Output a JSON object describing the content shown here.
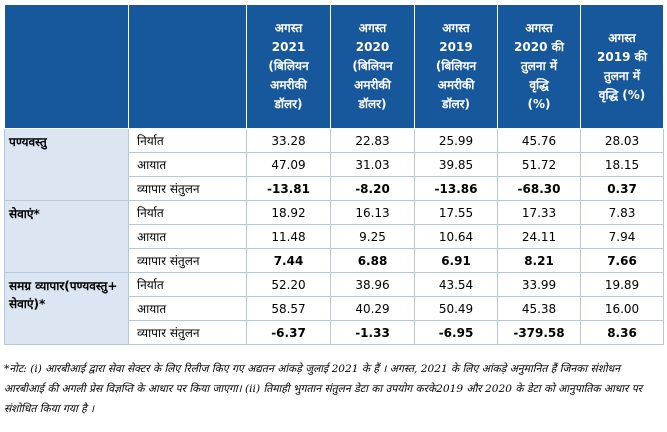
{
  "header": [
    {
      "lines": [
        "",
        ""
      ]
    },
    {
      "lines": [
        "",
        ""
      ]
    },
    {
      "lines": [
        "अगस्त",
        "2021",
        "(बिलियन",
        "अमरीकी",
        "डॉलर)"
      ]
    },
    {
      "lines": [
        "अगस्त",
        "2020",
        "(बिलियन",
        "अमरीकी",
        "डॉलर)"
      ]
    },
    {
      "lines": [
        "अगस्त",
        "2019",
        "(बिलियन",
        "अमरीकी",
        "डॉलर)"
      ]
    },
    {
      "lines": [
        "अगस्त",
        "2020 की",
        "तुलना में",
        "वृद्धि",
        "(%)"
      ]
    },
    {
      "lines": [
        "अगस्त",
        "2019 की",
        "तुलना में",
        "वृद्धि (%)",
        ""
      ]
    }
  ],
  "groups": [
    {
      "name": "पण्यवस्तु",
      "rows": [
        {
          "metric": "निर्यात",
          "values": [
            "33.28",
            "22.83",
            "25.99",
            "45.76",
            "28.03"
          ]
        },
        {
          "metric": "आयात",
          "values": [
            "47.09",
            "31.03",
            "39.85",
            "51.72",
            "18.15"
          ]
        },
        {
          "metric": "व्यापार संतुलन",
          "values": [
            "-13.81",
            "-8.20",
            "-13.86",
            "-68.30",
            "0.37"
          ]
        }
      ]
    },
    {
      "name": "सेवाएं*",
      "rows": [
        {
          "metric": "निर्यात",
          "values": [
            "18.92",
            "16.13",
            "17.55",
            "17.33",
            "7.83"
          ]
        },
        {
          "metric": "आयात",
          "values": [
            "11.48",
            "9.25",
            "10.64",
            "24.11",
            "7.94"
          ]
        },
        {
          "metric": "व्यापार संतुलन",
          "values": [
            "7.44",
            "6.88",
            "6.91",
            "8.21",
            "7.66"
          ]
        }
      ]
    },
    {
      "name": "समग्र व्यापार(पण्यवस्तु+ सेवाएं)*",
      "rows": [
        {
          "metric": "निर्यात",
          "values": [
            "52.20",
            "38.96",
            "43.54",
            "33.99",
            "19.89"
          ]
        },
        {
          "metric": "आयात",
          "values": [
            "58.57",
            "40.29",
            "50.49",
            "45.38",
            "16.00"
          ]
        },
        {
          "metric": "व्यापार संतुलन",
          "values": [
            "-6.37",
            "-1.33",
            "-6.95",
            "-379.58",
            "8.36"
          ]
        }
      ]
    }
  ],
  "note": "*नोट: (i) आरबीआई द्वारा सेवा सेक्टर के लिए रिलीज किए गए अद्यतन आंकड़े जुलाई 2021 के हैं । अगस्त, 2021 के लिए आंकड़े अनुमानित हैं जिनका संशोधन आरबीआई की अगली प्रेस विज्ञप्ति के आधार पर किया जाएगा। (ii) तिमाही भुगतान संतुलन डेटा का उपयोग करके2019 और 2020 के डेटा को आनुपातिक आधार पर संशोधित किया गया है ।"
}
